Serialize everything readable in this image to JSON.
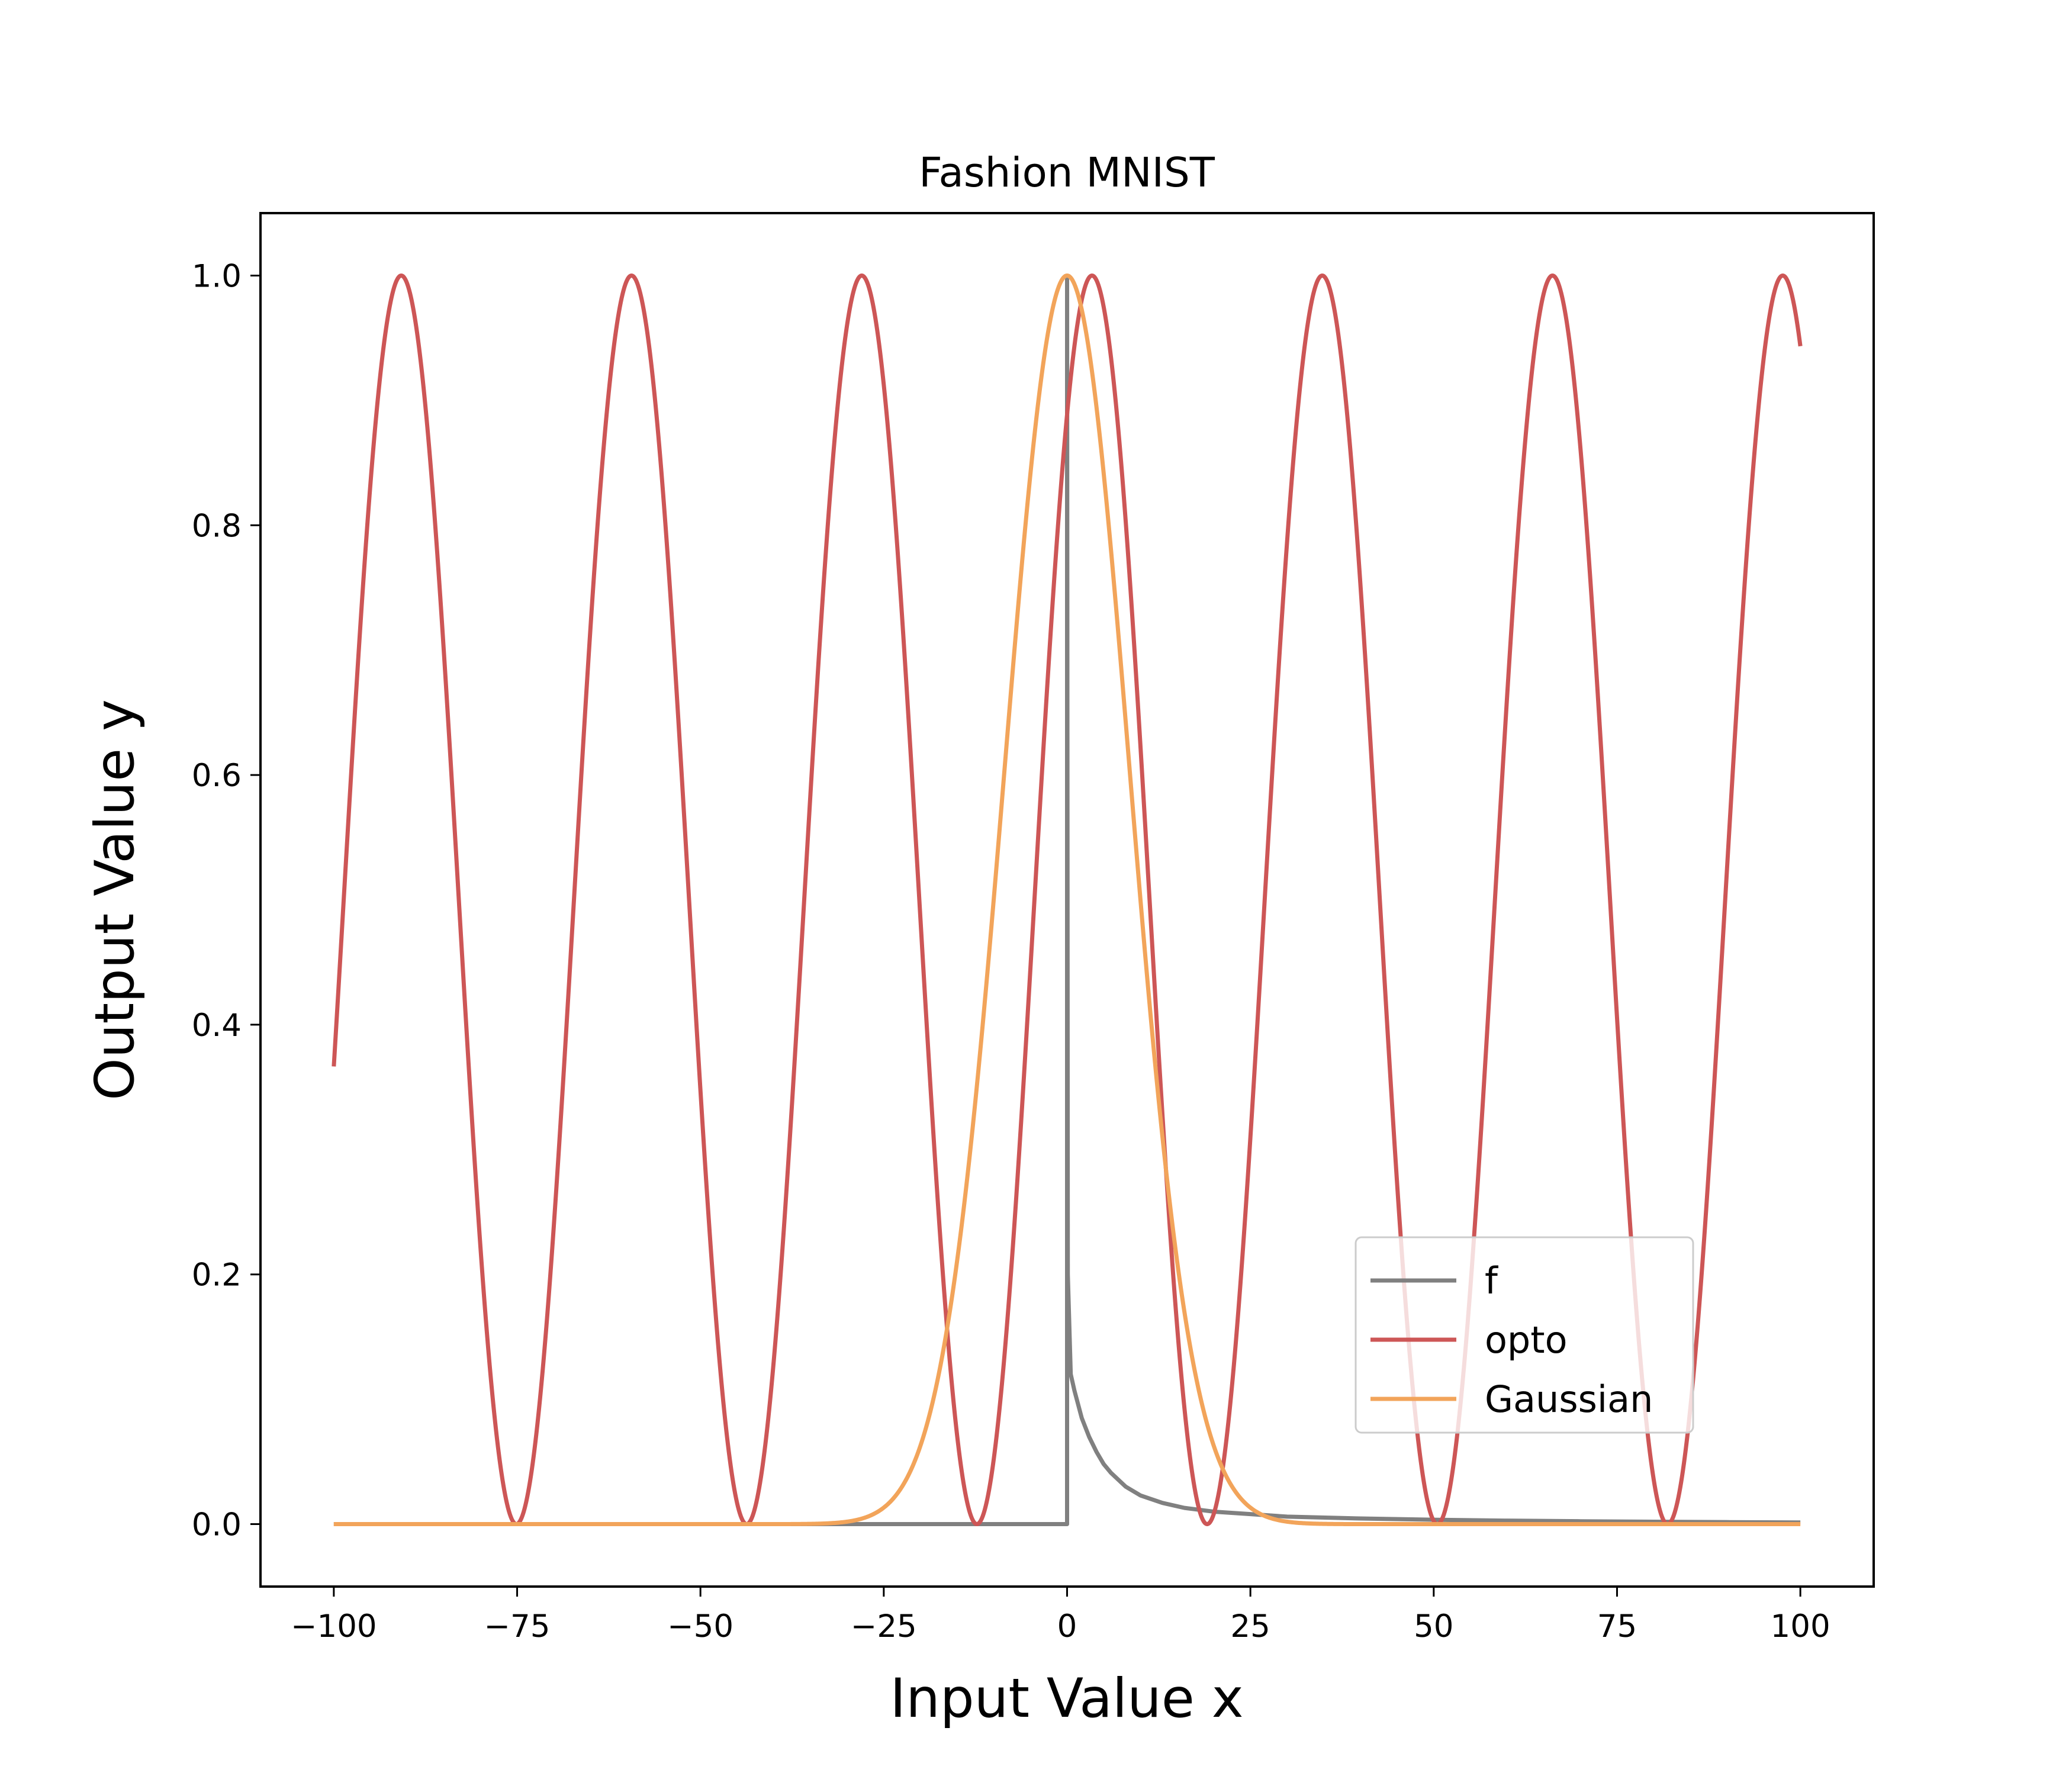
{
  "chart_data": {
    "type": "line",
    "title": "Fashion MNIST",
    "xlabel": "Input Value x",
    "ylabel": "Output Value y",
    "xlim": [
      -110,
      110
    ],
    "ylim": [
      -0.05,
      1.05
    ],
    "xticks": [
      -100,
      -75,
      -50,
      -25,
      0,
      25,
      50,
      75,
      100
    ],
    "xtick_labels": [
      "−100",
      "−75",
      "−50",
      "−25",
      "0",
      "25",
      "50",
      "75",
      "100"
    ],
    "yticks": [
      0.0,
      0.2,
      0.4,
      0.6,
      0.8,
      1.0
    ],
    "ytick_labels": [
      "0.0",
      "0.2",
      "0.4",
      "0.6",
      "0.8",
      "1.0"
    ],
    "grid": false,
    "legend_position": "lower-right",
    "series": [
      {
        "name": "f",
        "color": "#808080",
        "points": [
          [
            -100,
            0.0
          ],
          [
            0,
            0.0
          ],
          [
            0,
            1.0
          ],
          [
            0.1,
            0.2
          ],
          [
            0.5,
            0.12
          ],
          [
            1,
            0.107
          ],
          [
            2,
            0.085
          ],
          [
            3,
            0.07
          ],
          [
            4,
            0.058
          ],
          [
            5,
            0.048
          ],
          [
            6,
            0.041
          ],
          [
            8,
            0.03
          ],
          [
            10,
            0.023
          ],
          [
            13,
            0.017
          ],
          [
            16,
            0.013
          ],
          [
            20,
            0.01
          ],
          [
            25,
            0.008
          ],
          [
            30,
            0.006
          ],
          [
            40,
            0.0045
          ],
          [
            50,
            0.0035
          ],
          [
            60,
            0.0028
          ],
          [
            70,
            0.0023
          ],
          [
            80,
            0.0019
          ],
          [
            90,
            0.0016
          ],
          [
            100,
            0.0013
          ]
        ]
      },
      {
        "name": "opto",
        "color": "#cd5656",
        "amplitude": 1.0,
        "period": 31.4,
        "peaks_x": [
          -90.8,
          -59.4,
          -28.0,
          3.4,
          34.8,
          66.2,
          97.6
        ],
        "y_at_x_min": 0.36,
        "y_at_x_max": 0.95,
        "x_range": [
          -100,
          100
        ]
      },
      {
        "name": "Gaussian",
        "color": "#f2a45a",
        "peak_x": 0,
        "peak_y": 1.0,
        "sigma": 8.5,
        "x_range": [
          -100,
          100
        ]
      }
    ]
  }
}
